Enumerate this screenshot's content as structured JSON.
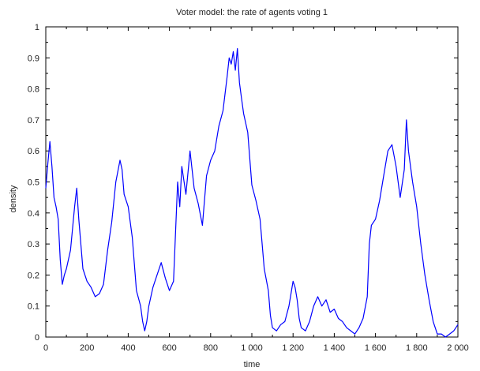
{
  "chart_data": {
    "type": "line",
    "title": "Voter model: the rate of agents voting 1",
    "xlabel": "time",
    "ylabel": "density",
    "xlim": [
      0,
      2000
    ],
    "ylim": [
      0,
      1
    ],
    "grid": false,
    "line_color": "#0000ff",
    "x_ticks": [
      0,
      200,
      400,
      600,
      800,
      1000,
      1200,
      1400,
      1600,
      1800,
      2000
    ],
    "x_tick_labels": [
      "0",
      "200",
      "400",
      "600",
      "800",
      "1 000",
      "1 200",
      "1 400",
      "1 600",
      "1 800",
      "2 000"
    ],
    "y_ticks": [
      0,
      0.1,
      0.2,
      0.3,
      0.4,
      0.5,
      0.6,
      0.7,
      0.8,
      0.9,
      1
    ],
    "y_tick_labels": [
      "0",
      "0.1",
      "0.2",
      "0.3",
      "0.4",
      "0.5",
      "0.6",
      "0.7",
      "0.8",
      "0.9",
      "1"
    ],
    "series": [
      {
        "x": [
          0,
          10,
          20,
          30,
          40,
          50,
          60,
          70,
          80,
          90,
          100,
          120,
          140,
          150,
          160,
          170,
          180,
          200,
          220,
          240,
          260,
          280,
          300,
          320,
          340,
          360,
          370,
          380,
          400,
          420,
          440,
          460,
          470,
          480,
          490,
          500,
          520,
          540,
          560,
          580,
          600,
          620,
          640,
          650,
          660,
          680,
          700,
          720,
          740,
          760,
          780,
          800,
          820,
          840,
          860,
          880,
          890,
          900,
          910,
          920,
          930,
          940,
          950,
          960,
          980,
          1000,
          1020,
          1040,
          1060,
          1080,
          1090,
          1100,
          1120,
          1140,
          1160,
          1180,
          1190,
          1200,
          1210,
          1220,
          1230,
          1240,
          1260,
          1280,
          1300,
          1320,
          1340,
          1360,
          1380,
          1400,
          1420,
          1440,
          1460,
          1480,
          1500,
          1520,
          1540,
          1560,
          1570,
          1580,
          1600,
          1620,
          1640,
          1660,
          1680,
          1700,
          1720,
          1740,
          1750,
          1760,
          1780,
          1800,
          1820,
          1840,
          1860,
          1880,
          1900,
          1920,
          1940,
          1960,
          1980,
          2000
        ],
        "y": [
          0.48,
          0.56,
          0.63,
          0.55,
          0.45,
          0.42,
          0.38,
          0.25,
          0.17,
          0.2,
          0.22,
          0.28,
          0.42,
          0.48,
          0.38,
          0.3,
          0.22,
          0.18,
          0.16,
          0.13,
          0.14,
          0.17,
          0.28,
          0.37,
          0.5,
          0.57,
          0.54,
          0.46,
          0.42,
          0.32,
          0.15,
          0.1,
          0.05,
          0.02,
          0.05,
          0.1,
          0.16,
          0.2,
          0.24,
          0.19,
          0.15,
          0.18,
          0.5,
          0.42,
          0.55,
          0.46,
          0.6,
          0.48,
          0.43,
          0.36,
          0.52,
          0.57,
          0.6,
          0.68,
          0.73,
          0.84,
          0.9,
          0.88,
          0.92,
          0.86,
          0.93,
          0.82,
          0.77,
          0.72,
          0.66,
          0.49,
          0.44,
          0.38,
          0.22,
          0.15,
          0.07,
          0.03,
          0.02,
          0.04,
          0.05,
          0.1,
          0.14,
          0.18,
          0.16,
          0.12,
          0.06,
          0.03,
          0.02,
          0.05,
          0.1,
          0.13,
          0.1,
          0.12,
          0.08,
          0.09,
          0.06,
          0.05,
          0.03,
          0.02,
          0.01,
          0.03,
          0.06,
          0.13,
          0.3,
          0.36,
          0.38,
          0.44,
          0.52,
          0.6,
          0.62,
          0.55,
          0.45,
          0.54,
          0.7,
          0.6,
          0.5,
          0.42,
          0.3,
          0.2,
          0.12,
          0.05,
          0.01,
          0.01,
          0.0,
          0.01,
          0.02,
          0.04
        ]
      }
    ]
  }
}
